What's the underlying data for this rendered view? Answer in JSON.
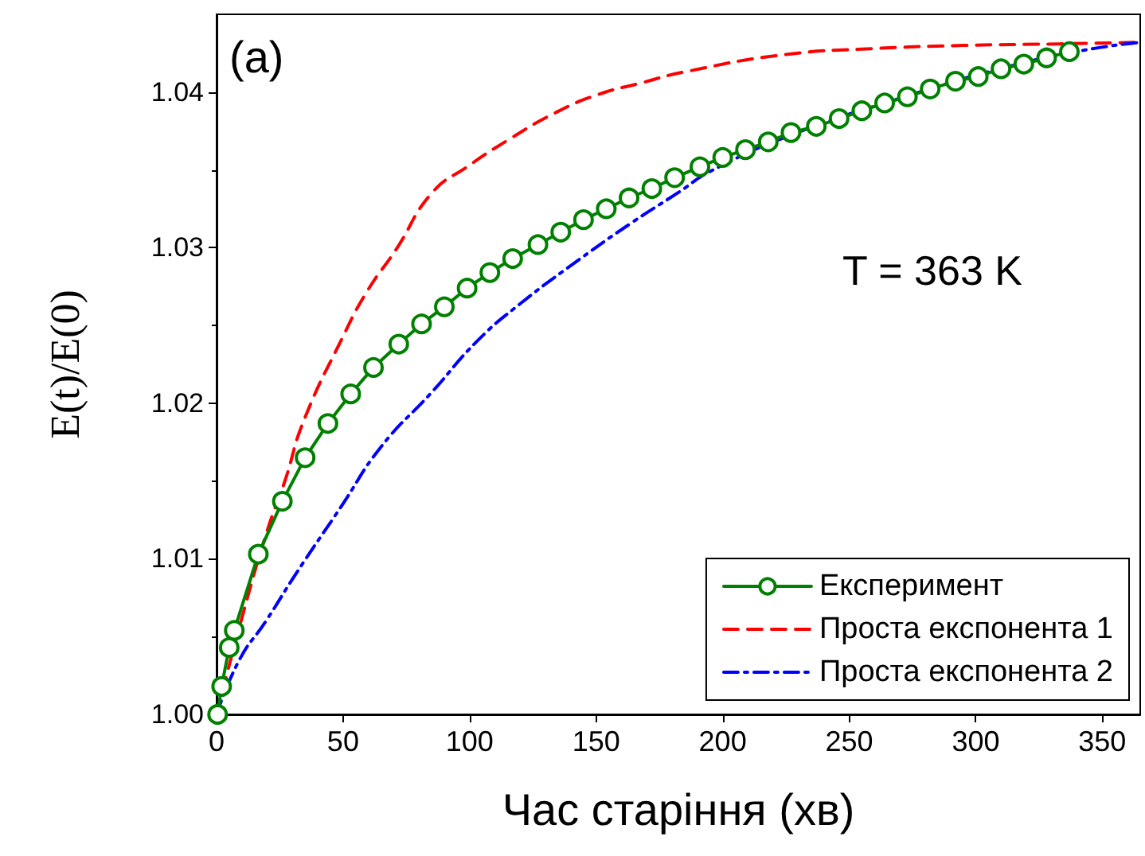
{
  "chart_data": {
    "type": "line",
    "xlabel": "Час старіння (хв)",
    "ylabel": "E(t)/E(0)",
    "annotations": [
      "(a)",
      "T = 363 K"
    ],
    "xlim": [
      0,
      365
    ],
    "xticks": [
      0,
      50,
      100,
      150,
      200,
      250,
      300,
      350
    ],
    "ylim": [
      1.0,
      1.045
    ],
    "yticks": [
      {
        "value": 1.0,
        "label": "1.00"
      },
      {
        "value": 1.01,
        "label": "1.01"
      },
      {
        "value": 1.02,
        "label": "1.02"
      },
      {
        "value": 1.03,
        "label": "1.03"
      },
      {
        "value": 1.04,
        "label": "1.04"
      }
    ],
    "grid": false,
    "legend": "bottom right",
    "series": [
      {
        "name": "Експеримент",
        "color": "#008000",
        "marker": "circle",
        "line_style": "solid",
        "x": [
          0.4,
          2,
          5,
          7,
          16.5,
          26,
          35,
          44,
          53,
          62,
          72,
          81,
          90,
          99,
          108,
          117,
          127,
          136,
          145,
          154,
          163,
          172,
          181,
          191,
          200,
          209,
          218,
          227,
          237,
          246,
          255,
          264,
          273,
          282,
          292,
          301,
          310,
          319,
          328,
          337
        ],
        "values": [
          1.0,
          1.0018,
          1.0043,
          1.0054,
          1.0103,
          1.0137,
          1.0165,
          1.0187,
          1.0206,
          1.0223,
          1.0238,
          1.0251,
          1.0262,
          1.0274,
          1.0284,
          1.0293,
          1.0302,
          1.031,
          1.0318,
          1.0325,
          1.0332,
          1.0338,
          1.0345,
          1.0352,
          1.0358,
          1.0363,
          1.0368,
          1.0374,
          1.0378,
          1.0383,
          1.0388,
          1.0393,
          1.0397,
          1.0402,
          1.0407,
          1.041,
          1.0415,
          1.0418,
          1.0422,
          1.0426
        ]
      },
      {
        "name": "Проста експонента 1",
        "color": "#ff0000",
        "marker": "none",
        "line_style": "dashed",
        "x": [
          0,
          10,
          20,
          27,
          34.5,
          50,
          59.5,
          71,
          85,
          99,
          116,
          133,
          150,
          168,
          185,
          224,
          260,
          295,
          333,
          365
        ],
        "values": [
          1.0,
          1.0062,
          1.0118,
          1.015,
          1.0189,
          1.0243,
          1.0272,
          1.0299,
          1.0335,
          1.0352,
          1.037,
          1.0386,
          1.0398,
          1.0406,
          1.0413,
          1.0424,
          1.0428,
          1.043,
          1.0431,
          1.0432
        ]
      },
      {
        "name": "Проста експонента 2",
        "color": "#0000ff",
        "marker": "none",
        "line_style": "dashdot",
        "x": [
          0,
          9,
          19.5,
          32,
          49,
          65,
          85,
          103,
          120,
          143,
          164,
          183,
          195,
          228,
          270,
          312,
          343,
          365
        ],
        "values": [
          1.0,
          1.0035,
          1.006,
          1.0092,
          1.0133,
          1.0172,
          1.0207,
          1.024,
          1.0264,
          1.0292,
          1.0316,
          1.0336,
          1.0349,
          1.0373,
          1.0396,
          1.0416,
          1.0427,
          1.0432
        ]
      }
    ]
  }
}
